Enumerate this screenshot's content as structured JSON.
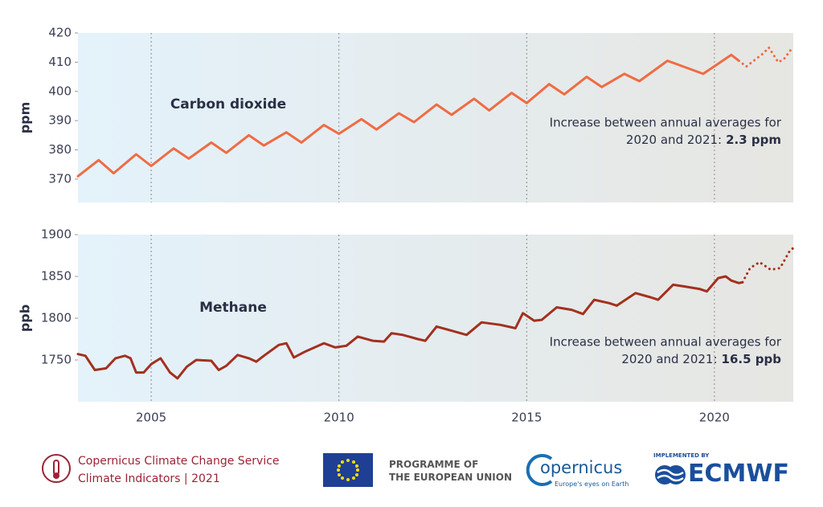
{
  "chart_data": [
    {
      "type": "line",
      "label": "Carbon dioxide",
      "ylabel": "ppm",
      "ylim": [
        362,
        420
      ],
      "yticks": [
        370,
        380,
        390,
        400,
        410,
        420
      ],
      "xlim": [
        2003.05,
        2022.1
      ],
      "annotation": {
        "lines": [
          "Increase between annual averages for",
          "2020 and 2021:"
        ],
        "value_text": "2.3 ppm"
      },
      "series": [
        {
          "color": "#f06b42",
          "dashed": false,
          "x": [
            2003.05,
            2003.6,
            2004.0,
            2004.6,
            2005.0,
            2005.6,
            2006.0,
            2006.6,
            2007.0,
            2007.6,
            2008.0,
            2008.6,
            2009.0,
            2009.6,
            2010.0,
            2010.6,
            2011.0,
            2011.6,
            2012.0,
            2012.6,
            2013.0,
            2013.6,
            2014.0,
            2014.6,
            2015.0,
            2015.6,
            2016.0,
            2016.6,
            2017.0,
            2017.6,
            2018.0,
            2018.75,
            2019.7,
            2020.45,
            2020.65
          ],
          "values": [
            371,
            376.5,
            372,
            378.5,
            374.5,
            380.5,
            377,
            382.5,
            379,
            385,
            381.5,
            386,
            382.5,
            388.5,
            385.5,
            390.5,
            387,
            392.5,
            389.5,
            395.5,
            392,
            397.5,
            393.5,
            399.5,
            396,
            402.5,
            399,
            405,
            401.5,
            406,
            403.5,
            410.5,
            406,
            412.5,
            410.5
          ]
        },
        {
          "color": "#f06b42",
          "dashed": true,
          "x": [
            2020.65,
            2020.85,
            2021.3,
            2021.45,
            2021.7,
            2021.85,
            2022.05
          ],
          "values": [
            410.5,
            408.5,
            413,
            415,
            410,
            411,
            414.5
          ]
        }
      ]
    },
    {
      "type": "line",
      "label": "Methane",
      "ylabel": "ppb",
      "ylim": [
        1700,
        1900
      ],
      "yticks": [
        1750,
        1800,
        1850,
        1900
      ],
      "xlim": [
        2003.05,
        2022.1
      ],
      "xticks": [
        2005,
        2010,
        2015,
        2020
      ],
      "annotation": {
        "lines": [
          "Increase between annual averages for",
          "2020 and 2021:"
        ],
        "value_text": "16.5 ppb"
      },
      "series": [
        {
          "color": "#a3301e",
          "dashed": false,
          "x": [
            2003.05,
            2003.25,
            2003.5,
            2003.8,
            2004.05,
            2004.3,
            2004.45,
            2004.6,
            2004.8,
            2005.0,
            2005.25,
            2005.5,
            2005.7,
            2005.95,
            2006.2,
            2006.6,
            2006.8,
            2007.0,
            2007.3,
            2007.6,
            2007.8,
            2008.0,
            2008.4,
            2008.6,
            2008.8,
            2009.1,
            2009.6,
            2009.9,
            2010.2,
            2010.5,
            2010.9,
            2011.2,
            2011.4,
            2011.7,
            2012.1,
            2012.3,
            2012.6,
            2013.0,
            2013.4,
            2013.8,
            2014.3,
            2014.7,
            2014.9,
            2015.2,
            2015.4,
            2015.8,
            2016.2,
            2016.5,
            2016.8,
            2017.2,
            2017.4,
            2017.9,
            2018.3,
            2018.5,
            2018.9,
            2019.2,
            2019.6,
            2019.8,
            2020.1,
            2020.3,
            2020.45,
            2020.65,
            2020.75
          ],
          "values": [
            1757,
            1755,
            1738,
            1740,
            1752,
            1755,
            1752,
            1735,
            1735,
            1745,
            1752,
            1735,
            1728,
            1742,
            1750,
            1749,
            1738,
            1743,
            1756,
            1752,
            1748,
            1755,
            1768,
            1770,
            1753,
            1760,
            1770,
            1765,
            1767,
            1778,
            1773,
            1772,
            1782,
            1780,
            1775,
            1773,
            1790,
            1785,
            1780,
            1795,
            1792,
            1788,
            1806,
            1797,
            1798,
            1813,
            1810,
            1805,
            1822,
            1818,
            1815,
            1830,
            1825,
            1822,
            1840,
            1838,
            1835,
            1832,
            1848,
            1850,
            1845,
            1842,
            1843
          ]
        },
        {
          "color": "#a3301e",
          "dashed": true,
          "x": [
            2020.75,
            2020.95,
            2021.2,
            2021.5,
            2021.75,
            2022.0,
            2022.1
          ],
          "values": [
            1843,
            1860,
            1867,
            1858,
            1860,
            1880,
            1884
          ]
        }
      ]
    }
  ],
  "footer": {
    "c3s_name": "Copernicus Climate Change Service",
    "c3s_sub": "Climate Indicators | 2021",
    "eu_line1": "PROGRAMME OF",
    "eu_line2": "THE EUROPEAN UNION",
    "copernicus": "opernicus",
    "copernicus_tag": "Europe's eyes on Earth",
    "ecmwf_top": "IMPLEMENTED BY",
    "ecmwf": "ECMWF"
  }
}
